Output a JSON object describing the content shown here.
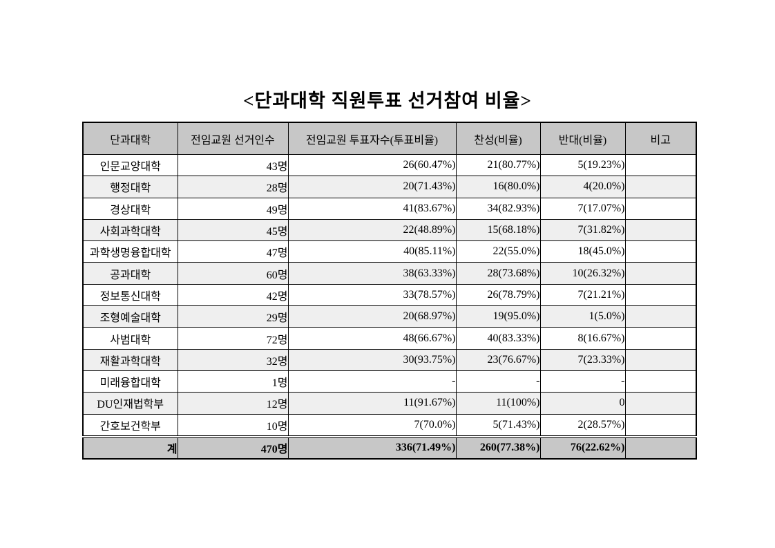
{
  "title": "<단과대학 직원투표 선거참여 비율>",
  "colors": {
    "header_bg": "#c7c7c7",
    "total_row_bg": "#c7c7c7",
    "alt_row_bg": "#efefef",
    "border": "#000000",
    "page_bg": "#ffffff"
  },
  "table": {
    "columns": [
      "단과대학",
      "전임교원 선거인수",
      "전임교원 투표자수(투표비율)",
      "찬성(비율)",
      "반대(비율)",
      "비고"
    ],
    "rows": [
      {
        "college": "인문교양대학",
        "electors": "43명",
        "voters": "26(60.47%)",
        "approve": "21(80.77%)",
        "oppose": "5(19.23%)",
        "note": ""
      },
      {
        "college": "행정대학",
        "electors": "28명",
        "voters": "20(71.43%)",
        "approve": "16(80.0%)",
        "oppose": "4(20.0%)",
        "note": ""
      },
      {
        "college": "경상대학",
        "electors": "49명",
        "voters": "41(83.67%)",
        "approve": "34(82.93%)",
        "oppose": "7(17.07%)",
        "note": ""
      },
      {
        "college": "사회과학대학",
        "electors": "45명",
        "voters": "22(48.89%)",
        "approve": "15(68.18%)",
        "oppose": "7(31.82%)",
        "note": ""
      },
      {
        "college": "과학생명융합대학",
        "electors": "47명",
        "voters": "40(85.11%)",
        "approve": "22(55.0%)",
        "oppose": "18(45.0%)",
        "note": ""
      },
      {
        "college": "공과대학",
        "electors": "60명",
        "voters": "38(63.33%)",
        "approve": "28(73.68%)",
        "oppose": "10(26.32%)",
        "note": ""
      },
      {
        "college": "정보통신대학",
        "electors": "42명",
        "voters": "33(78.57%)",
        "approve": "26(78.79%)",
        "oppose": "7(21.21%)",
        "note": ""
      },
      {
        "college": "조형예술대학",
        "electors": "29명",
        "voters": "20(68.97%)",
        "approve": "19(95.0%)",
        "oppose": "1(5.0%)",
        "note": ""
      },
      {
        "college": "사범대학",
        "electors": "72명",
        "voters": "48(66.67%)",
        "approve": "40(83.33%)",
        "oppose": "8(16.67%)",
        "note": ""
      },
      {
        "college": "재활과학대학",
        "electors": "32명",
        "voters": "30(93.75%)",
        "approve": "23(76.67%)",
        "oppose": "7(23.33%)",
        "note": ""
      },
      {
        "college": "미래융합대학",
        "electors": "1명",
        "voters": "-",
        "approve": "-",
        "oppose": "-",
        "note": ""
      },
      {
        "college": "DU인재법학부",
        "electors": "12명",
        "voters": "11(91.67%)",
        "approve": "11(100%)",
        "oppose": "0",
        "note": ""
      },
      {
        "college": "간호보건학부",
        "electors": "10명",
        "voters": "7(70.0%)",
        "approve": "5(71.43%)",
        "oppose": "2(28.57%)",
        "note": ""
      }
    ],
    "total": {
      "college": "계",
      "electors": "470명",
      "voters": "336(71.49%)",
      "approve": "260(77.38%)",
      "oppose": "76(22.62%)",
      "note": ""
    }
  }
}
